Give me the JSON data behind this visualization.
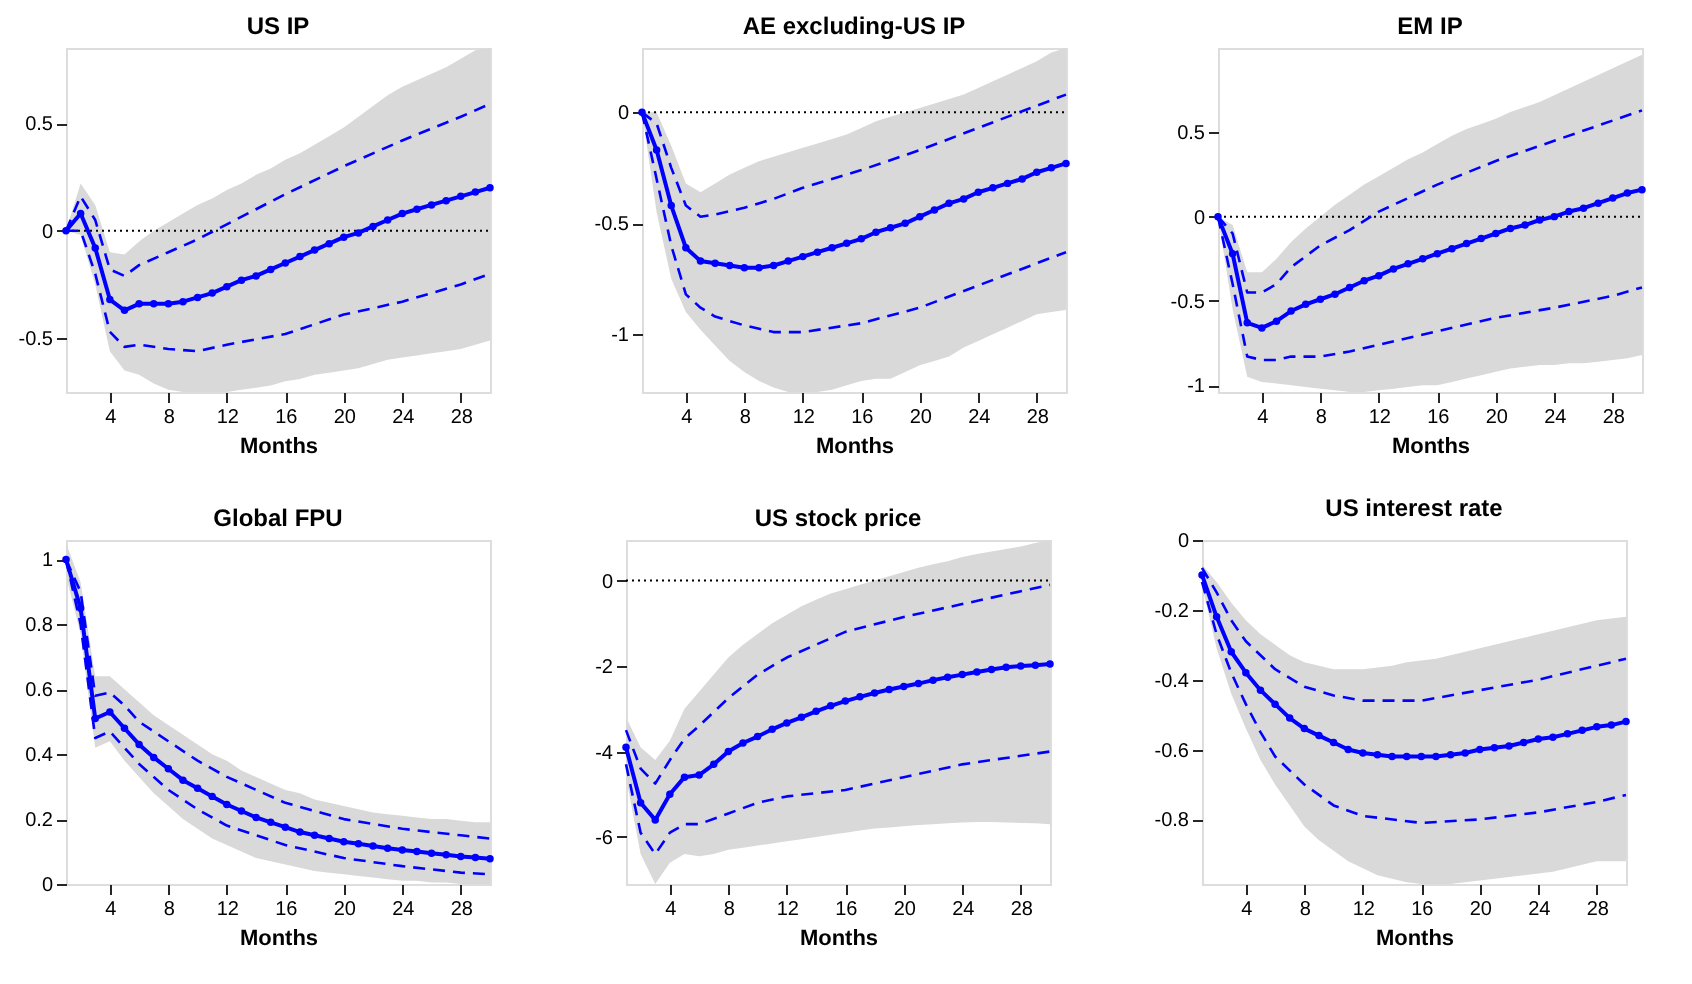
{
  "chart_data": [
    {
      "type": "line",
      "title": "US IP",
      "xlabel": "Months",
      "x": [
        1,
        2,
        3,
        4,
        5,
        6,
        7,
        8,
        9,
        10,
        11,
        12,
        13,
        14,
        15,
        16,
        17,
        18,
        19,
        20,
        21,
        22,
        23,
        24,
        25,
        26,
        27,
        28,
        29,
        30
      ],
      "xlim": [
        1,
        30
      ],
      "xticks": [
        4,
        8,
        12,
        16,
        20,
        24,
        28
      ],
      "ylim": [
        -0.75,
        0.85
      ],
      "yticks": [
        -0.5,
        0,
        0.5
      ],
      "grid": false,
      "ref_lines": [
        {
          "axis": "y",
          "value": 0,
          "color": "#000000",
          "line_style": "dotted"
        }
      ],
      "series": [
        {
          "color": "#0000ff",
          "marker": "circle",
          "line_style": "solid",
          "values": [
            0,
            0.08,
            -0.08,
            -0.32,
            -0.37,
            -0.34,
            -0.34,
            -0.34,
            -0.33,
            -0.31,
            -0.29,
            -0.26,
            -0.23,
            -0.21,
            -0.18,
            -0.15,
            -0.12,
            -0.09,
            -0.06,
            -0.03,
            -0.01,
            0.02,
            0.05,
            0.08,
            0.1,
            0.12,
            0.14,
            0.16,
            0.18,
            0.2
          ],
          "upper": [
            0,
            0.22,
            0.12,
            -0.1,
            -0.11,
            -0.05,
            0,
            0.04,
            0.08,
            0.12,
            0.15,
            0.19,
            0.22,
            0.26,
            0.29,
            0.33,
            0.36,
            0.4,
            0.44,
            0.48,
            0.53,
            0.58,
            0.63,
            0.67,
            0.7,
            0.73,
            0.76,
            0.8,
            0.84,
            0.85
          ],
          "lower": [
            0,
            -0.02,
            -0.25,
            -0.56,
            -0.65,
            -0.67,
            -0.71,
            -0.74,
            -0.75,
            -0.75,
            -0.75,
            -0.75,
            -0.74,
            -0.73,
            -0.72,
            -0.7,
            -0.69,
            -0.67,
            -0.66,
            -0.65,
            -0.64,
            -0.62,
            -0.6,
            -0.59,
            -0.58,
            -0.57,
            -0.56,
            -0.55,
            -0.53,
            -0.51
          ]
        },
        {
          "color": "#0000ff",
          "line_style": "dashed",
          "x": [
            1,
            2,
            3,
            4,
            5,
            6,
            8,
            10,
            12,
            16,
            20,
            24,
            28,
            30
          ],
          "values": [
            0,
            0.16,
            0.05,
            -0.18,
            -0.21,
            -0.16,
            -0.1,
            -0.04,
            0.03,
            0.17,
            0.3,
            0.42,
            0.53,
            0.59
          ]
        },
        {
          "color": "#0000ff",
          "line_style": "dashed",
          "x": [
            1,
            2,
            3,
            4,
            5,
            6,
            8,
            10,
            12,
            16,
            20,
            24,
            28,
            30
          ],
          "values": [
            0,
            0,
            -0.2,
            -0.47,
            -0.54,
            -0.53,
            -0.55,
            -0.56,
            -0.53,
            -0.48,
            -0.39,
            -0.33,
            -0.25,
            -0.2
          ]
        }
      ]
    },
    {
      "type": "line",
      "title": "AE excluding-US IP",
      "xlabel": "Months",
      "x": [
        1,
        2,
        3,
        4,
        5,
        6,
        7,
        8,
        9,
        10,
        11,
        12,
        13,
        14,
        15,
        16,
        17,
        18,
        19,
        20,
        21,
        22,
        23,
        24,
        25,
        26,
        27,
        28,
        29,
        30
      ],
      "xlim": [
        1,
        30
      ],
      "xticks": [
        4,
        8,
        12,
        16,
        20,
        24,
        28
      ],
      "ylim": [
        -1.26,
        0.29
      ],
      "yticks": [
        -1,
        -0.5,
        0
      ],
      "grid": false,
      "ref_lines": [
        {
          "axis": "y",
          "value": 0,
          "color": "#000000",
          "line_style": "dotted"
        }
      ],
      "series": [
        {
          "color": "#0000ff",
          "marker": "circle",
          "line_style": "solid",
          "values": [
            0,
            -0.17,
            -0.42,
            -0.61,
            -0.67,
            -0.68,
            -0.69,
            -0.7,
            -0.7,
            -0.69,
            -0.67,
            -0.65,
            -0.63,
            -0.61,
            -0.59,
            -0.57,
            -0.54,
            -0.52,
            -0.5,
            -0.47,
            -0.44,
            -0.41,
            -0.39,
            -0.36,
            -0.34,
            -0.32,
            -0.3,
            -0.27,
            -0.25,
            -0.23
          ],
          "upper": [
            0,
            0,
            -0.15,
            -0.32,
            -0.36,
            -0.32,
            -0.28,
            -0.25,
            -0.22,
            -0.2,
            -0.18,
            -0.16,
            -0.14,
            -0.12,
            -0.1,
            -0.07,
            -0.04,
            -0.02,
            0,
            0.02,
            0.04,
            0.06,
            0.08,
            0.11,
            0.14,
            0.17,
            0.2,
            0.23,
            0.27,
            0.29
          ],
          "lower": [
            0,
            -0.45,
            -0.75,
            -0.9,
            -0.98,
            -1.05,
            -1.12,
            -1.17,
            -1.21,
            -1.24,
            -1.26,
            -1.26,
            -1.26,
            -1.25,
            -1.23,
            -1.21,
            -1.2,
            -1.2,
            -1.17,
            -1.14,
            -1.12,
            -1.1,
            -1.06,
            -1.03,
            -1,
            -0.97,
            -0.94,
            -0.91,
            -0.9,
            -0.89
          ]
        },
        {
          "color": "#0000ff",
          "line_style": "dashed",
          "x": [
            1,
            2,
            3,
            4,
            5,
            6,
            8,
            10,
            12,
            16,
            20,
            24,
            28,
            30
          ],
          "values": [
            0,
            -0.05,
            -0.25,
            -0.42,
            -0.47,
            -0.46,
            -0.43,
            -0.39,
            -0.34,
            -0.26,
            -0.17,
            -0.07,
            0.03,
            0.08
          ]
        },
        {
          "color": "#0000ff",
          "line_style": "dashed",
          "x": [
            1,
            2,
            3,
            4,
            5,
            6,
            8,
            10,
            12,
            16,
            20,
            24,
            28,
            30
          ],
          "values": [
            0,
            -0.3,
            -0.6,
            -0.82,
            -0.88,
            -0.92,
            -0.96,
            -0.99,
            -0.99,
            -0.95,
            -0.88,
            -0.78,
            -0.68,
            -0.63
          ]
        }
      ]
    },
    {
      "type": "line",
      "title": "EM IP",
      "xlabel": "Months",
      "x": [
        1,
        2,
        3,
        4,
        5,
        6,
        7,
        8,
        9,
        10,
        11,
        12,
        13,
        14,
        15,
        16,
        17,
        18,
        19,
        20,
        21,
        22,
        23,
        24,
        25,
        26,
        27,
        28,
        29,
        30
      ],
      "xlim": [
        1,
        30
      ],
      "xticks": [
        4,
        8,
        12,
        16,
        20,
        24,
        28
      ],
      "ylim": [
        -1.04,
        1.0
      ],
      "yticks": [
        -1,
        -0.5,
        0,
        0.5
      ],
      "grid": false,
      "ref_lines": [
        {
          "axis": "y",
          "value": 0,
          "color": "#000000",
          "line_style": "dotted"
        }
      ],
      "series": [
        {
          "color": "#0000ff",
          "marker": "circle",
          "line_style": "solid",
          "values": [
            0,
            -0.22,
            -0.63,
            -0.66,
            -0.62,
            -0.56,
            -0.52,
            -0.49,
            -0.46,
            -0.42,
            -0.38,
            -0.35,
            -0.31,
            -0.28,
            -0.25,
            -0.22,
            -0.19,
            -0.16,
            -0.13,
            -0.1,
            -0.07,
            -0.05,
            -0.02,
            0,
            0.03,
            0.05,
            0.08,
            0.11,
            0.14,
            0.16
          ],
          "upper": [
            0,
            -0.05,
            -0.33,
            -0.33,
            -0.25,
            -0.15,
            -0.07,
            0,
            0.07,
            0.13,
            0.19,
            0.24,
            0.29,
            0.34,
            0.38,
            0.43,
            0.48,
            0.52,
            0.55,
            0.58,
            0.62,
            0.65,
            0.68,
            0.72,
            0.76,
            0.8,
            0.84,
            0.88,
            0.92,
            0.96
          ],
          "lower": [
            0,
            -0.55,
            -0.95,
            -0.98,
            -0.99,
            -1,
            -1.01,
            -1.02,
            -1.03,
            -1.04,
            -1.04,
            -1.03,
            -1.02,
            -1.01,
            -1,
            -1,
            -0.98,
            -0.96,
            -0.94,
            -0.92,
            -0.9,
            -0.89,
            -0.88,
            -0.88,
            -0.87,
            -0.87,
            -0.86,
            -0.85,
            -0.84,
            -0.82
          ]
        },
        {
          "color": "#0000ff",
          "line_style": "dashed",
          "x": [
            1,
            2,
            3,
            4,
            5,
            6,
            8,
            10,
            12,
            16,
            20,
            24,
            28,
            30
          ],
          "values": [
            0,
            -0.1,
            -0.45,
            -0.45,
            -0.4,
            -0.3,
            -0.17,
            -0.08,
            0.03,
            0.19,
            0.33,
            0.45,
            0.57,
            0.63
          ]
        },
        {
          "color": "#0000ff",
          "line_style": "dashed",
          "x": [
            1,
            2,
            3,
            4,
            5,
            6,
            8,
            10,
            12,
            16,
            20,
            24,
            28,
            30
          ],
          "values": [
            0,
            -0.4,
            -0.83,
            -0.85,
            -0.85,
            -0.83,
            -0.83,
            -0.8,
            -0.76,
            -0.68,
            -0.6,
            -0.54,
            -0.47,
            -0.42
          ]
        }
      ]
    },
    {
      "type": "line",
      "title": "Global FPU",
      "xlabel": "Months",
      "x": [
        1,
        2,
        3,
        4,
        5,
        6,
        7,
        8,
        9,
        10,
        11,
        12,
        13,
        14,
        15,
        16,
        17,
        18,
        19,
        20,
        21,
        22,
        23,
        24,
        25,
        26,
        27,
        28,
        29,
        30
      ],
      "xlim": [
        1,
        30
      ],
      "xticks": [
        4,
        8,
        12,
        16,
        20,
        24,
        28
      ],
      "ylim": [
        0,
        1.06
      ],
      "yticks": [
        0,
        0.2,
        0.4,
        0.6,
        0.8,
        1
      ],
      "grid": false,
      "series": [
        {
          "color": "#0000ff",
          "marker": "circle",
          "line_style": "solid",
          "values": [
            1,
            0.85,
            0.51,
            0.53,
            0.48,
            0.43,
            0.39,
            0.355,
            0.32,
            0.295,
            0.27,
            0.245,
            0.225,
            0.205,
            0.19,
            0.175,
            0.16,
            0.15,
            0.14,
            0.13,
            0.124,
            0.117,
            0.11,
            0.105,
            0.1,
            0.095,
            0.09,
            0.085,
            0.082,
            0.078
          ],
          "upper": [
            1.05,
            0.93,
            0.64,
            0.64,
            0.6,
            0.56,
            0.52,
            0.49,
            0.46,
            0.43,
            0.4,
            0.38,
            0.35,
            0.33,
            0.31,
            0.29,
            0.28,
            0.26,
            0.25,
            0.24,
            0.23,
            0.22,
            0.215,
            0.21,
            0.205,
            0.2,
            0.2,
            0.195,
            0.19,
            0.19
          ],
          "lower": [
            0.95,
            0.77,
            0.42,
            0.44,
            0.38,
            0.33,
            0.28,
            0.24,
            0.2,
            0.17,
            0.14,
            0.12,
            0.1,
            0.08,
            0.07,
            0.06,
            0.05,
            0.04,
            0.035,
            0.03,
            0.025,
            0.02,
            0.015,
            0.01,
            0.01,
            0.005,
            0.005,
            0,
            0,
            0
          ]
        },
        {
          "color": "#0000ff",
          "line_style": "dashed",
          "x": [
            1,
            2,
            3,
            4,
            5,
            6,
            8,
            10,
            12,
            16,
            20,
            24,
            28,
            30
          ],
          "values": [
            1,
            0.9,
            0.58,
            0.59,
            0.55,
            0.5,
            0.44,
            0.38,
            0.33,
            0.25,
            0.2,
            0.17,
            0.15,
            0.14
          ]
        },
        {
          "color": "#0000ff",
          "line_style": "dashed",
          "x": [
            1,
            2,
            3,
            4,
            5,
            6,
            8,
            10,
            12,
            16,
            20,
            24,
            28,
            30
          ],
          "values": [
            1,
            0.8,
            0.45,
            0.47,
            0.42,
            0.37,
            0.29,
            0.23,
            0.18,
            0.12,
            0.08,
            0.055,
            0.035,
            0.03
          ]
        }
      ]
    },
    {
      "type": "line",
      "title": "US stock price",
      "xlabel": "Months",
      "x": [
        1,
        2,
        3,
        4,
        5,
        6,
        7,
        8,
        9,
        10,
        11,
        12,
        13,
        14,
        15,
        16,
        17,
        18,
        19,
        20,
        21,
        22,
        23,
        24,
        25,
        26,
        27,
        28,
        29,
        30
      ],
      "xlim": [
        1,
        30
      ],
      "xticks": [
        4,
        8,
        12,
        16,
        20,
        24,
        28
      ],
      "ylim": [
        -7.1,
        0.95
      ],
      "yticks": [
        -6,
        -4,
        -2,
        0
      ],
      "grid": false,
      "ref_lines": [
        {
          "axis": "y",
          "value": 0,
          "color": "#000000",
          "line_style": "dotted"
        }
      ],
      "series": [
        {
          "color": "#0000ff",
          "marker": "circle",
          "line_style": "solid",
          "values": [
            -3.9,
            -5.2,
            -5.6,
            -5.0,
            -4.6,
            -4.55,
            -4.3,
            -4.0,
            -3.8,
            -3.65,
            -3.48,
            -3.33,
            -3.2,
            -3.06,
            -2.93,
            -2.82,
            -2.72,
            -2.63,
            -2.55,
            -2.48,
            -2.41,
            -2.33,
            -2.26,
            -2.2,
            -2.14,
            -2.08,
            -2.03,
            -2.0,
            -1.98,
            -1.95
          ],
          "upper": [
            -3.2,
            -3.9,
            -4.2,
            -3.75,
            -3.0,
            -2.6,
            -2.2,
            -1.8,
            -1.5,
            -1.25,
            -1.0,
            -0.8,
            -0.6,
            -0.45,
            -0.3,
            -0.2,
            -0.1,
            0,
            0.1,
            0.2,
            0.3,
            0.38,
            0.45,
            0.55,
            0.62,
            0.68,
            0.74,
            0.8,
            0.88,
            0.95
          ],
          "lower": [
            -4.6,
            -6.4,
            -7.1,
            -6.6,
            -6.4,
            -6.45,
            -6.4,
            -6.3,
            -6.25,
            -6.2,
            -6.15,
            -6.1,
            -6.05,
            -6.0,
            -5.95,
            -5.9,
            -5.85,
            -5.8,
            -5.78,
            -5.75,
            -5.72,
            -5.7,
            -5.68,
            -5.66,
            -5.65,
            -5.65,
            -5.66,
            -5.67,
            -5.68,
            -5.7
          ]
        },
        {
          "color": "#0000ff",
          "line_style": "dashed",
          "x": [
            1,
            2,
            3,
            4,
            5,
            6,
            8,
            10,
            12,
            16,
            20,
            24,
            28,
            30
          ],
          "values": [
            -3.5,
            -4.4,
            -4.75,
            -4.2,
            -3.7,
            -3.4,
            -2.75,
            -2.2,
            -1.8,
            -1.2,
            -0.85,
            -0.55,
            -0.25,
            -0.1
          ]
        },
        {
          "color": "#0000ff",
          "line_style": "dashed",
          "x": [
            1,
            2,
            3,
            4,
            5,
            6,
            8,
            10,
            12,
            16,
            20,
            24,
            28,
            30
          ],
          "values": [
            -4.3,
            -5.9,
            -6.4,
            -5.9,
            -5.7,
            -5.7,
            -5.45,
            -5.2,
            -5.05,
            -4.9,
            -4.6,
            -4.3,
            -4.1,
            -4.0
          ]
        }
      ]
    },
    {
      "type": "line",
      "title": "US interest rate",
      "xlabel": "Months",
      "x": [
        1,
        2,
        3,
        4,
        5,
        6,
        7,
        8,
        9,
        10,
        11,
        12,
        13,
        14,
        15,
        16,
        17,
        18,
        19,
        20,
        21,
        22,
        23,
        24,
        25,
        26,
        27,
        28,
        29,
        30
      ],
      "xlim": [
        1,
        30
      ],
      "xticks": [
        4,
        8,
        12,
        16,
        20,
        24,
        28
      ],
      "ylim": [
        -0.985,
        0
      ],
      "yticks": [
        -0.8,
        -0.6,
        -0.4,
        -0.2,
        0
      ],
      "grid": false,
      "series": [
        {
          "color": "#0000ff",
          "marker": "circle",
          "line_style": "solid",
          "values": [
            -0.1,
            -0.22,
            -0.32,
            -0.38,
            -0.43,
            -0.47,
            -0.51,
            -0.54,
            -0.56,
            -0.58,
            -0.6,
            -0.61,
            -0.615,
            -0.62,
            -0.62,
            -0.62,
            -0.62,
            -0.615,
            -0.61,
            -0.6,
            -0.595,
            -0.59,
            -0.58,
            -0.57,
            -0.565,
            -0.555,
            -0.545,
            -0.535,
            -0.53,
            -0.52
          ],
          "upper": [
            -0.07,
            -0.12,
            -0.18,
            -0.23,
            -0.27,
            -0.3,
            -0.33,
            -0.35,
            -0.36,
            -0.37,
            -0.37,
            -0.37,
            -0.365,
            -0.36,
            -0.35,
            -0.345,
            -0.34,
            -0.33,
            -0.32,
            -0.31,
            -0.3,
            -0.29,
            -0.28,
            -0.27,
            -0.26,
            -0.25,
            -0.24,
            -0.23,
            -0.225,
            -0.22
          ],
          "lower": [
            -0.13,
            -0.31,
            -0.44,
            -0.54,
            -0.63,
            -0.7,
            -0.76,
            -0.82,
            -0.86,
            -0.89,
            -0.92,
            -0.94,
            -0.96,
            -0.97,
            -0.98,
            -0.985,
            -0.985,
            -0.985,
            -0.98,
            -0.975,
            -0.97,
            -0.965,
            -0.96,
            -0.955,
            -0.95,
            -0.94,
            -0.93,
            -0.92,
            -0.92,
            -0.92
          ]
        },
        {
          "color": "#0000ff",
          "line_style": "dashed",
          "x": [
            1,
            2,
            3,
            4,
            5,
            6,
            8,
            10,
            12,
            16,
            20,
            24,
            28,
            30
          ],
          "values": [
            -0.08,
            -0.15,
            -0.23,
            -0.29,
            -0.33,
            -0.37,
            -0.42,
            -0.445,
            -0.46,
            -0.46,
            -0.43,
            -0.4,
            -0.36,
            -0.34
          ]
        },
        {
          "color": "#0000ff",
          "line_style": "dashed",
          "x": [
            1,
            2,
            3,
            4,
            5,
            6,
            8,
            10,
            12,
            16,
            20,
            24,
            28,
            30
          ],
          "values": [
            -0.12,
            -0.27,
            -0.38,
            -0.47,
            -0.55,
            -0.62,
            -0.7,
            -0.76,
            -0.79,
            -0.81,
            -0.8,
            -0.78,
            -0.75,
            -0.73
          ]
        }
      ]
    }
  ]
}
